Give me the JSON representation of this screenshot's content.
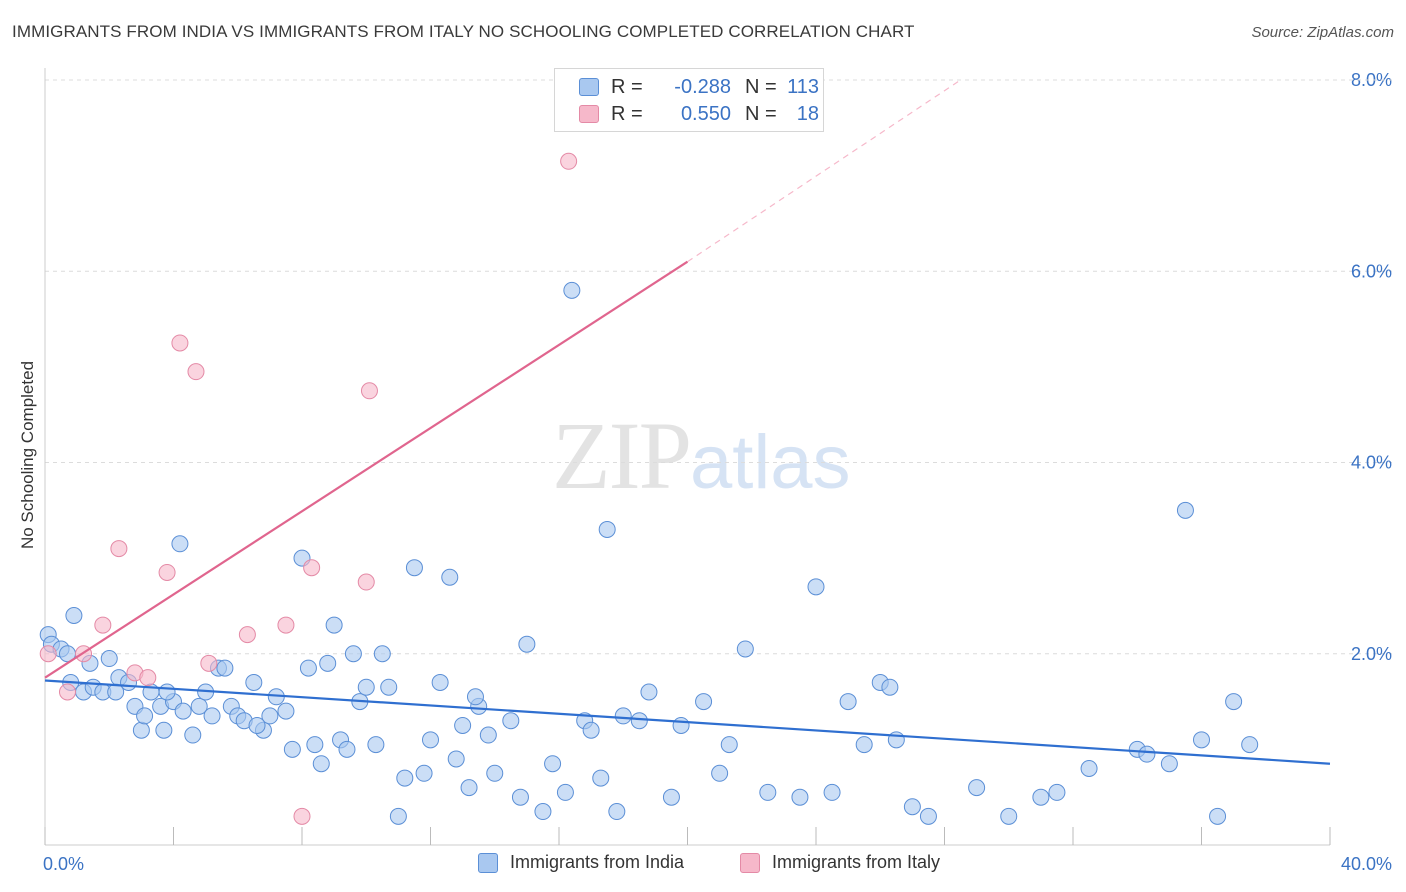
{
  "header": {
    "title": "IMMIGRANTS FROM INDIA VS IMMIGRANTS FROM ITALY NO SCHOOLING COMPLETED CORRELATION CHART",
    "source": "Source: ZipAtlas.com"
  },
  "watermark": {
    "zip": "ZIP",
    "atlas": "atlas"
  },
  "legend": {
    "india": {
      "r_label": "R =",
      "r_value": "-0.288",
      "n_label": "N =",
      "n_value": "113",
      "color": "#a9c8f0"
    },
    "italy": {
      "r_label": "R =",
      "r_value": "0.550",
      "n_label": "N =",
      "n_value": "18",
      "color": "#f6b8ca"
    }
  },
  "bottom_legend": {
    "india": "Immigrants from India",
    "italy": "Immigrants from Italy"
  },
  "chart_data": {
    "type": "scatter",
    "title": "IMMIGRANTS FROM INDIA VS IMMIGRANTS FROM ITALY NO SCHOOLING COMPLETED CORRELATION CHART",
    "ylabel": "No Schooling Completed",
    "xlabel": "",
    "xlim": [
      0,
      40
    ],
    "ylim": [
      0,
      8
    ],
    "x_tick_labels": [
      "0.0%",
      "40.0%"
    ],
    "y_ticks": [
      2,
      4,
      6,
      8
    ],
    "y_tick_labels": [
      "2.0%",
      "4.0%",
      "6.0%",
      "8.0%"
    ],
    "grid": true,
    "series": [
      {
        "name": "Immigrants from India",
        "color": "#a9c8f0",
        "stroke": "#5b8fd6",
        "trend_color": "#2f6fd0",
        "trend": {
          "x": [
            0,
            40
          ],
          "y": [
            1.72,
            0.85
          ]
        },
        "points": [
          [
            0.1,
            2.2
          ],
          [
            0.2,
            2.1
          ],
          [
            0.5,
            2.05
          ],
          [
            0.7,
            2.0
          ],
          [
            0.9,
            2.4
          ],
          [
            0.8,
            1.7
          ],
          [
            1.2,
            1.6
          ],
          [
            1.4,
            1.9
          ],
          [
            1.5,
            1.65
          ],
          [
            1.8,
            1.6
          ],
          [
            2.0,
            1.95
          ],
          [
            2.2,
            1.6
          ],
          [
            2.3,
            1.75
          ],
          [
            2.6,
            1.7
          ],
          [
            2.8,
            1.45
          ],
          [
            3.0,
            1.2
          ],
          [
            3.1,
            1.35
          ],
          [
            3.3,
            1.6
          ],
          [
            3.6,
            1.45
          ],
          [
            3.7,
            1.2
          ],
          [
            4.0,
            1.5
          ],
          [
            4.2,
            3.15
          ],
          [
            4.3,
            1.4
          ],
          [
            4.6,
            1.15
          ],
          [
            4.8,
            1.45
          ],
          [
            5.0,
            1.6
          ],
          [
            5.2,
            1.35
          ],
          [
            5.4,
            1.85
          ],
          [
            5.6,
            1.85
          ],
          [
            5.8,
            1.45
          ],
          [
            6.0,
            1.35
          ],
          [
            6.2,
            1.3
          ],
          [
            6.5,
            1.7
          ],
          [
            6.8,
            1.2
          ],
          [
            7.0,
            1.35
          ],
          [
            7.2,
            1.55
          ],
          [
            7.5,
            1.4
          ],
          [
            7.7,
            1.0
          ],
          [
            8.0,
            3.0
          ],
          [
            8.2,
            1.85
          ],
          [
            8.4,
            1.05
          ],
          [
            8.6,
            0.85
          ],
          [
            8.8,
            1.9
          ],
          [
            9.0,
            2.3
          ],
          [
            9.2,
            1.1
          ],
          [
            9.4,
            1.0
          ],
          [
            9.6,
            2.0
          ],
          [
            9.8,
            1.5
          ],
          [
            10.0,
            1.65
          ],
          [
            10.3,
            1.05
          ],
          [
            10.5,
            2.0
          ],
          [
            10.7,
            1.65
          ],
          [
            11.0,
            0.3
          ],
          [
            11.2,
            0.7
          ],
          [
            11.5,
            2.9
          ],
          [
            11.8,
            0.75
          ],
          [
            12.0,
            1.1
          ],
          [
            12.3,
            1.7
          ],
          [
            12.6,
            2.8
          ],
          [
            12.8,
            0.9
          ],
          [
            13.0,
            1.25
          ],
          [
            13.2,
            0.6
          ],
          [
            13.5,
            1.45
          ],
          [
            13.8,
            1.15
          ],
          [
            14.0,
            0.75
          ],
          [
            14.5,
            1.3
          ],
          [
            14.8,
            0.5
          ],
          [
            15.0,
            2.1
          ],
          [
            15.5,
            0.35
          ],
          [
            15.8,
            0.85
          ],
          [
            16.2,
            0.55
          ],
          [
            16.4,
            5.8
          ],
          [
            16.8,
            1.3
          ],
          [
            17.0,
            1.2
          ],
          [
            17.3,
            0.7
          ],
          [
            17.5,
            3.3
          ],
          [
            17.8,
            0.35
          ],
          [
            18.0,
            1.35
          ],
          [
            18.5,
            1.3
          ],
          [
            18.8,
            1.6
          ],
          [
            19.5,
            0.5
          ],
          [
            19.8,
            1.25
          ],
          [
            20.5,
            1.5
          ],
          [
            21.0,
            0.75
          ],
          [
            21.3,
            1.05
          ],
          [
            21.8,
            2.05
          ],
          [
            22.5,
            0.55
          ],
          [
            23.5,
            0.5
          ],
          [
            24.0,
            2.7
          ],
          [
            24.5,
            0.55
          ],
          [
            25.0,
            1.5
          ],
          [
            25.5,
            1.05
          ],
          [
            26.0,
            1.7
          ],
          [
            26.3,
            1.65
          ],
          [
            26.5,
            1.1
          ],
          [
            27.0,
            0.4
          ],
          [
            27.5,
            0.3
          ],
          [
            29.0,
            0.6
          ],
          [
            30.0,
            0.3
          ],
          [
            31.0,
            0.5
          ],
          [
            31.5,
            0.55
          ],
          [
            32.5,
            0.8
          ],
          [
            34.0,
            1.0
          ],
          [
            34.3,
            0.95
          ],
          [
            35.0,
            0.85
          ],
          [
            35.5,
            3.5
          ],
          [
            36.0,
            1.1
          ],
          [
            36.5,
            0.3
          ],
          [
            37.0,
            1.5
          ],
          [
            37.5,
            1.05
          ],
          [
            3.8,
            1.6
          ],
          [
            6.6,
            1.25
          ],
          [
            13.4,
            1.55
          ]
        ]
      },
      {
        "name": "Immigrants from Italy",
        "color": "#f6b8ca",
        "stroke": "#e48aa6",
        "trend_color": "#e0658e",
        "trend": {
          "x": [
            0,
            20.0
          ],
          "y": [
            1.75,
            6.1
          ]
        },
        "trend_dashed": {
          "x": [
            20.0,
            28.5
          ],
          "y": [
            6.1,
            8.0
          ]
        },
        "points": [
          [
            0.1,
            2.0
          ],
          [
            0.7,
            1.6
          ],
          [
            1.2,
            2.0
          ],
          [
            1.8,
            2.3
          ],
          [
            2.3,
            3.1
          ],
          [
            2.8,
            1.8
          ],
          [
            3.2,
            1.75
          ],
          [
            3.8,
            2.85
          ],
          [
            4.2,
            5.25
          ],
          [
            4.7,
            4.95
          ],
          [
            5.1,
            1.9
          ],
          [
            6.3,
            2.2
          ],
          [
            7.5,
            2.3
          ],
          [
            8.0,
            0.3
          ],
          [
            8.3,
            2.9
          ],
          [
            10.0,
            2.75
          ],
          [
            10.1,
            4.75
          ],
          [
            16.3,
            7.15
          ]
        ]
      }
    ]
  }
}
